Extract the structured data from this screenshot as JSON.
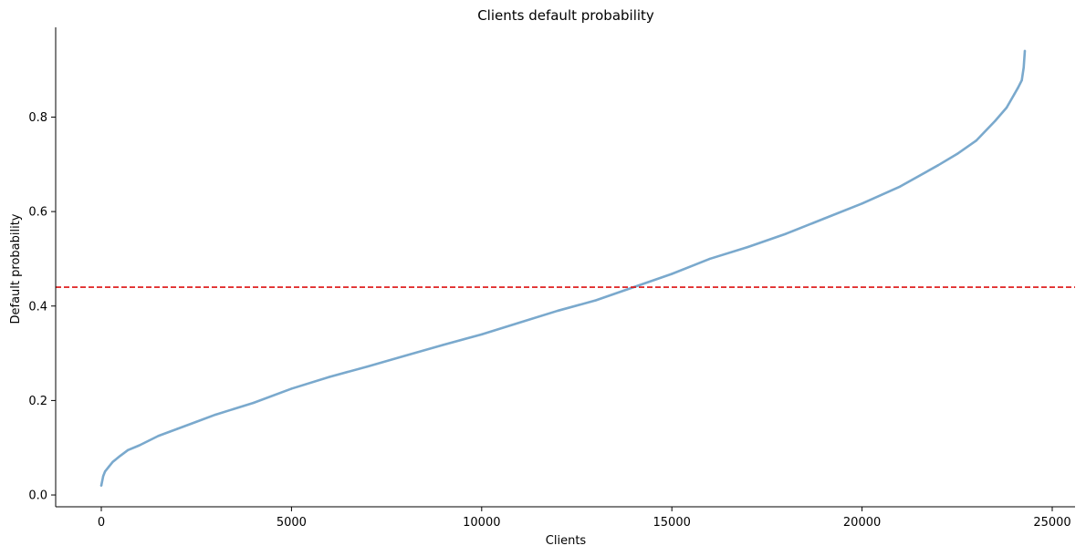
{
  "chart_data": {
    "type": "scatter",
    "title": "Clients default probability",
    "xlabel": "Clients",
    "ylabel": "Default probability",
    "xlim": [
      -1200,
      25600
    ],
    "ylim": [
      -0.025,
      0.99
    ],
    "x_ticks": [
      0,
      5000,
      10000,
      15000,
      20000,
      25000
    ],
    "x_tick_labels": [
      "0",
      "5000",
      "10000",
      "15000",
      "20000",
      "25000"
    ],
    "y_ticks": [
      0.0,
      0.2,
      0.4,
      0.6,
      0.8
    ],
    "y_tick_labels": [
      "0.0",
      "0.2",
      "0.4",
      "0.6",
      "0.8"
    ],
    "grid": false,
    "series": [
      {
        "color": "#7aa9cd",
        "x": [
          0,
          50,
          100,
          200,
          300,
          500,
          700,
          1000,
          1500,
          2000,
          2500,
          3000,
          4000,
          5000,
          6000,
          7000,
          8000,
          9000,
          10000,
          11000,
          12000,
          13000,
          14000,
          15000,
          16000,
          17000,
          18000,
          19000,
          20000,
          21000,
          22000,
          22500,
          23000,
          23500,
          23800,
          24000,
          24100,
          24200,
          24250,
          24280
        ],
        "y": [
          0.02,
          0.04,
          0.05,
          0.06,
          0.07,
          0.083,
          0.095,
          0.105,
          0.125,
          0.14,
          0.155,
          0.17,
          0.195,
          0.225,
          0.25,
          0.272,
          0.295,
          0.318,
          0.34,
          0.365,
          0.39,
          0.412,
          0.44,
          0.468,
          0.5,
          0.525,
          0.553,
          0.585,
          0.617,
          0.653,
          0.698,
          0.722,
          0.75,
          0.792,
          0.82,
          0.848,
          0.862,
          0.878,
          0.905,
          0.94
        ]
      }
    ],
    "threshold": {
      "y": 0.44,
      "color": "#dd1111",
      "style": "dashed"
    }
  }
}
